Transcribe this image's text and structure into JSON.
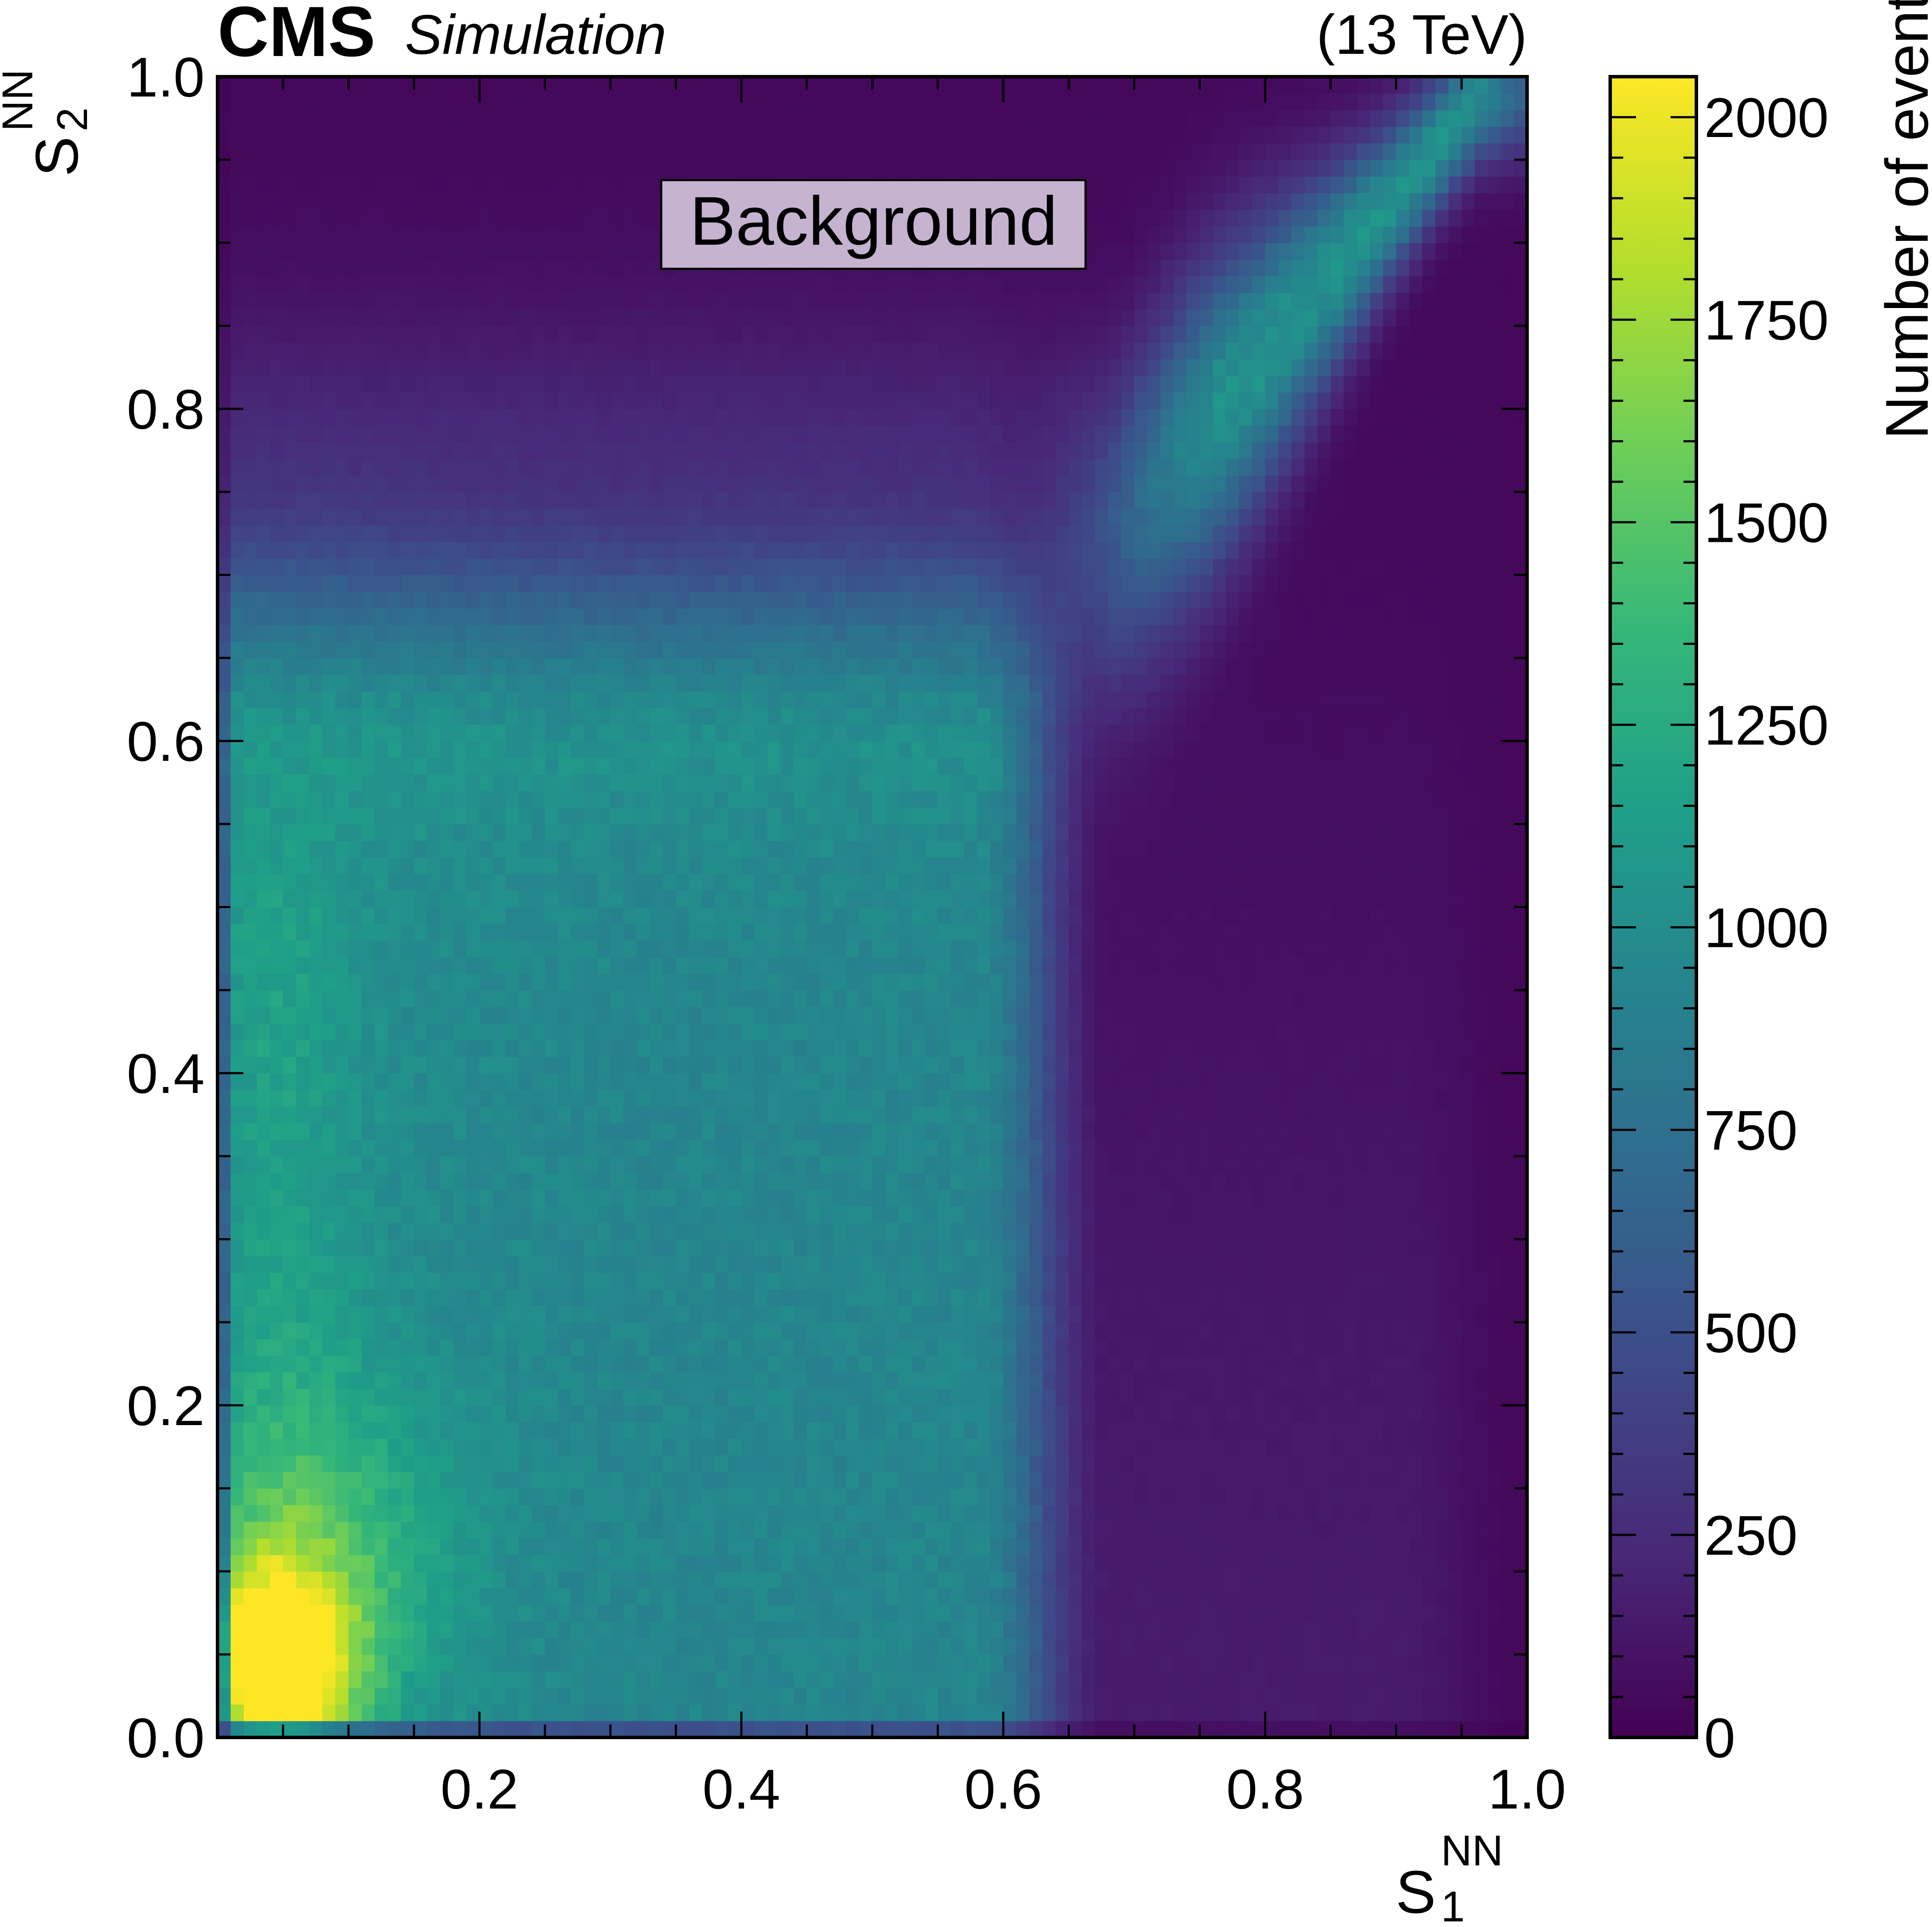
{
  "header": {
    "experiment": "CMS",
    "qualifier": "Simulation",
    "energy": "(13 TeV)"
  },
  "chart_data": {
    "type": "heatmap",
    "title": "",
    "annotation": "Background",
    "xlabel": {
      "base": "S",
      "sub": "1",
      "sup": "NN"
    },
    "ylabel": {
      "base": "S",
      "sub": "2",
      "sup": "NN"
    },
    "xlim": [
      0.0,
      1.0
    ],
    "ylim": [
      0.0,
      1.0
    ],
    "x_ticks": [
      "0.2",
      "0.4",
      "0.6",
      "0.8",
      "1.0"
    ],
    "y_ticks": [
      "0.0",
      "0.2",
      "0.4",
      "0.6",
      "0.8",
      "1.0"
    ],
    "x_tick_values": [
      0.2,
      0.4,
      0.6,
      0.8,
      1.0
    ],
    "y_tick_values": [
      0.0,
      0.2,
      0.4,
      0.6,
      0.8,
      1.0
    ],
    "bins": 100,
    "colorbar": {
      "label": "Number of events",
      "range": [
        0,
        2050
      ],
      "ticks": [
        0,
        250,
        500,
        750,
        1000,
        1250,
        1500,
        1750,
        2000
      ],
      "tick_labels": [
        "0",
        "250",
        "500",
        "750",
        "1000",
        "1250",
        "1500",
        "1750",
        "2000"
      ],
      "colormap": "viridis"
    },
    "colors": {
      "viridis": [
        "#440154",
        "#482878",
        "#3e4989",
        "#31688e",
        "#26828e",
        "#1f9e89",
        "#35b779",
        "#6ece58",
        "#b5de2b",
        "#fde725"
      ],
      "annotation_box": "#c5b3cf"
    },
    "features": [
      {
        "region": "peak near origin",
        "x": 0.04,
        "y": 0.04,
        "value": 2020
      },
      {
        "region": "bulk plateau",
        "x_range": [
          0.0,
          0.62
        ],
        "y_range": [
          0.0,
          0.62
        ],
        "value": 950
      },
      {
        "region": "diagonal ridge",
        "x_range": [
          0.7,
          0.98
        ],
        "value": 1050
      },
      {
        "region": "low-density region",
        "x_range": [
          0.7,
          1.0
        ],
        "y_range": [
          0.0,
          0.6
        ],
        "value": 60
      }
    ]
  }
}
